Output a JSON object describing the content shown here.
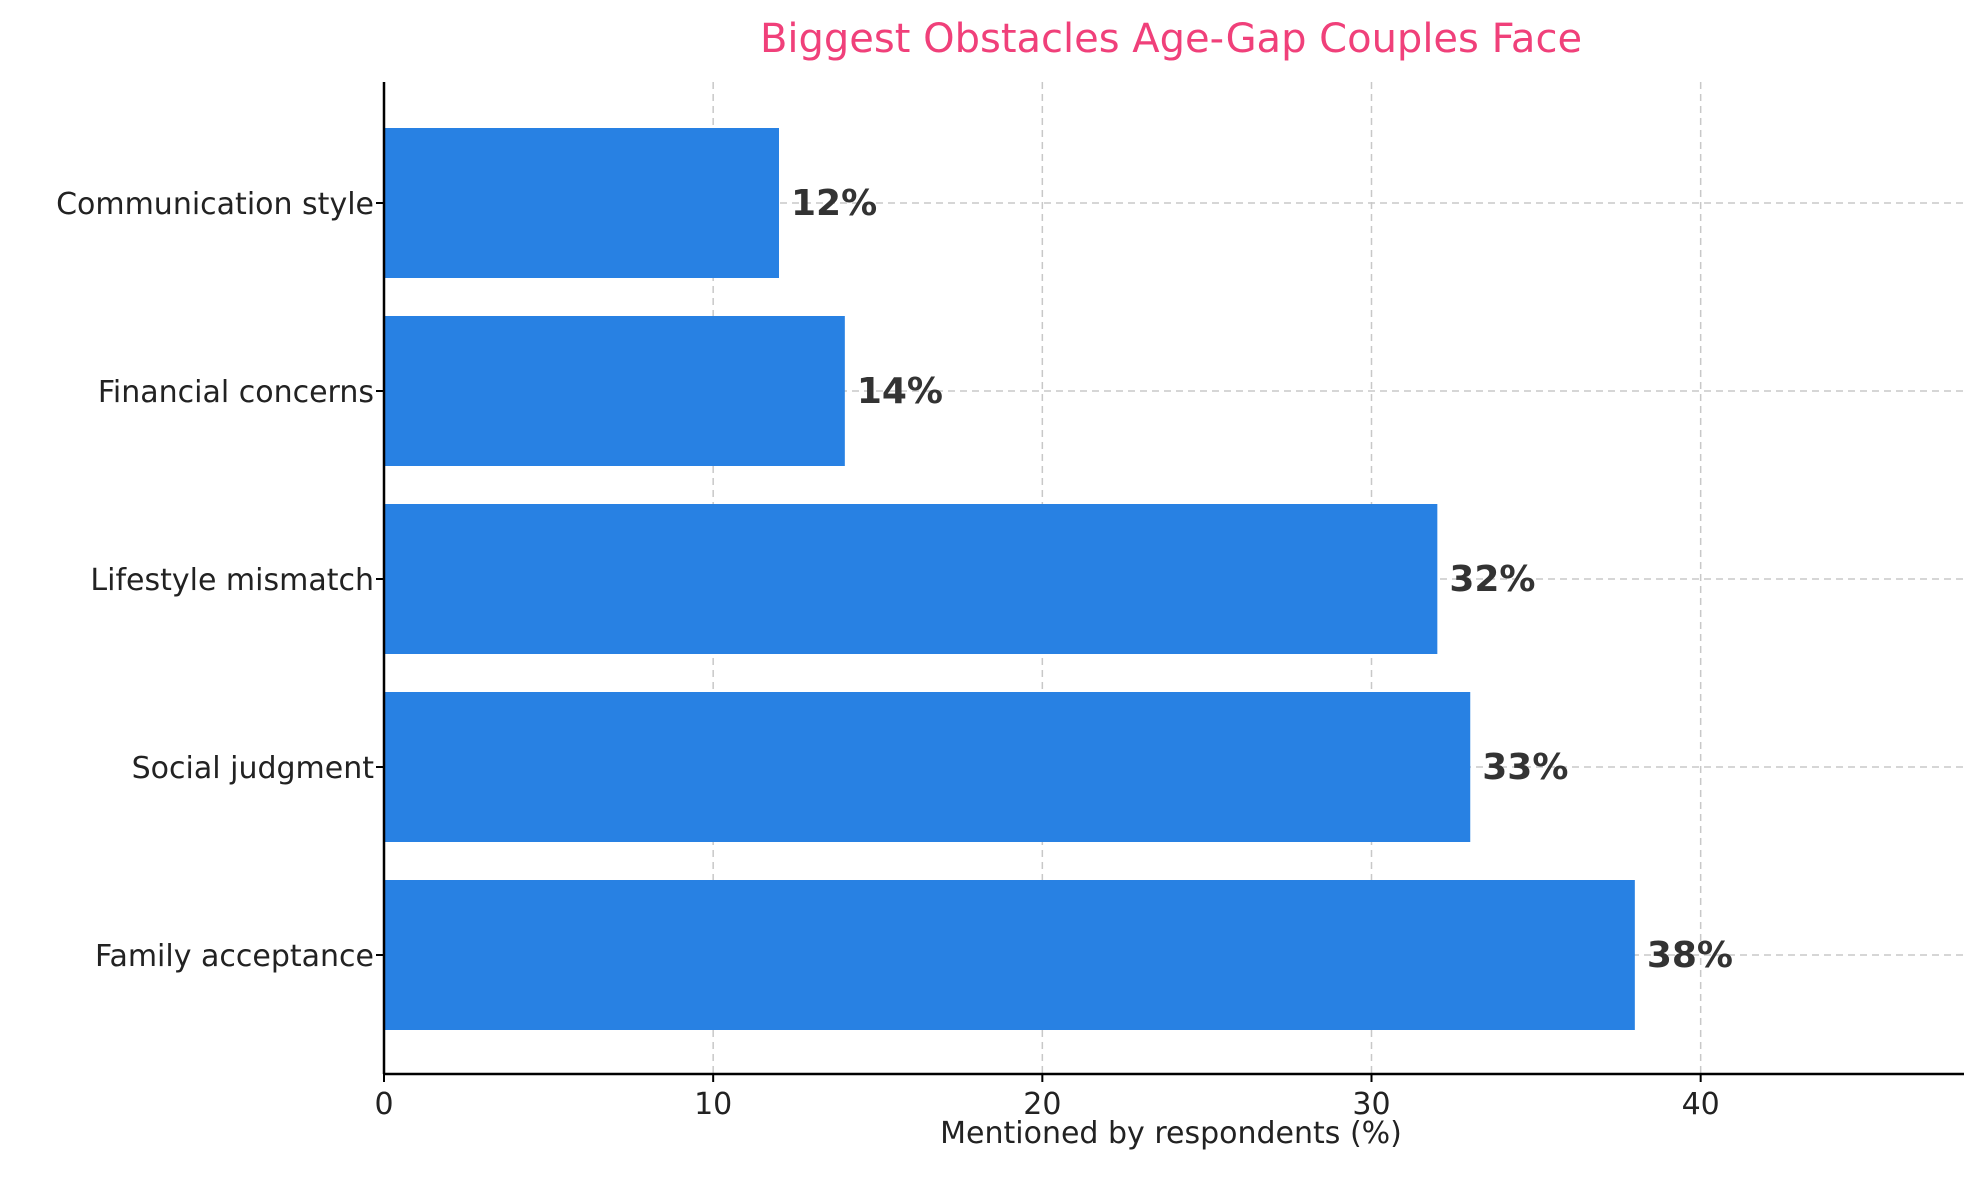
{
  "chart_data": {
    "type": "bar",
    "orientation": "horizontal",
    "title": "Biggest Obstacles Age-Gap Couples Face",
    "xlabel": "Mentioned by respondents (%)",
    "ylabel": "",
    "categories": [
      "Family acceptance",
      "Social judgment",
      "Lifestyle mismatch",
      "Financial concerns",
      "Communication style"
    ],
    "values": [
      38,
      33,
      32,
      14,
      12
    ],
    "data_labels": [
      "38%",
      "33%",
      "32%",
      "14%",
      "12%"
    ],
    "xlim": [
      0,
      48
    ],
    "xticks": [
      0,
      10,
      20,
      30,
      40
    ],
    "xtick_labels": [
      "0",
      "10",
      "20",
      "30",
      "40"
    ],
    "grid": true,
    "colors": {
      "bar": "#2881e3",
      "title": "#f0407a",
      "data_label": "#333333"
    }
  }
}
